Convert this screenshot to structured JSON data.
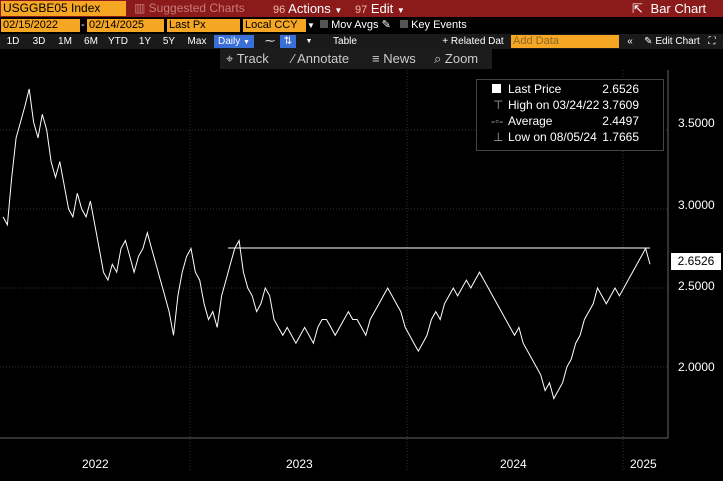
{
  "toolbar": {
    "ticker": "USGGBE05 Index",
    "suggested": "Suggested Charts",
    "actions_num": "96",
    "actions": "Actions",
    "edit_num": "97",
    "edit": "Edit",
    "bar_chart": "Bar Chart"
  },
  "controls": {
    "date_from": "02/15/2022",
    "date_to": "02/14/2025",
    "field": "Last Px",
    "currency": "Local CCY",
    "mov_avgs": "Mov Avgs",
    "key_events": "Key Events",
    "periods": [
      "1D",
      "3D",
      "1M",
      "6M",
      "YTD",
      "1Y",
      "5Y",
      "Max"
    ],
    "frequency": "Daily",
    "table": "Table",
    "related_data": "Related Dat",
    "add_data": "Add Data",
    "edit_chart": "Edit Chart"
  },
  "chart_tools": [
    "Track",
    "Annotate",
    "News",
    "Zoom"
  ],
  "legend": {
    "last_label": "Last Price",
    "last_value": "2.6526",
    "high_label": "High on 03/24/22",
    "high_value": "3.7609",
    "avg_label": "Average",
    "avg_value": "2.4497",
    "low_label": "Low on 08/05/24",
    "low_value": "1.7665"
  },
  "last_price_tag": "2.6526",
  "chart_data": {
    "type": "line",
    "x_labels": [
      "2022",
      "2023",
      "2024",
      "2025"
    ],
    "y_ticks": [
      "3.5000",
      "3.0000",
      "2.5000",
      "2.0000"
    ],
    "ylim": [
      1.55,
      3.88
    ],
    "series": [
      {
        "values": [
          2.95,
          2.9,
          3.2,
          3.45,
          3.55,
          3.65,
          3.76,
          3.55,
          3.45,
          3.6,
          3.5,
          3.3,
          3.2,
          3.3,
          3.15,
          3.0,
          2.95,
          3.1,
          3.0,
          2.95,
          3.05,
          2.9,
          2.75,
          2.6,
          2.55,
          2.65,
          2.6,
          2.75,
          2.8,
          2.7,
          2.6,
          2.7,
          2.75,
          2.85,
          2.75,
          2.65,
          2.55,
          2.45,
          2.35,
          2.2,
          2.45,
          2.6,
          2.7,
          2.75,
          2.6,
          2.55,
          2.4,
          2.3,
          2.35,
          2.25,
          2.45,
          2.55,
          2.65,
          2.75,
          2.8,
          2.6,
          2.5,
          2.45,
          2.35,
          2.4,
          2.5,
          2.45,
          2.3,
          2.25,
          2.2,
          2.25,
          2.2,
          2.15,
          2.2,
          2.25,
          2.2,
          2.15,
          2.25,
          2.3,
          2.3,
          2.25,
          2.2,
          2.25,
          2.3,
          2.35,
          2.3,
          2.3,
          2.25,
          2.2,
          2.3,
          2.35,
          2.4,
          2.45,
          2.5,
          2.45,
          2.4,
          2.35,
          2.25,
          2.2,
          2.15,
          2.1,
          2.15,
          2.2,
          2.3,
          2.35,
          2.3,
          2.4,
          2.45,
          2.5,
          2.45,
          2.5,
          2.55,
          2.5,
          2.55,
          2.6,
          2.55,
          2.5,
          2.45,
          2.4,
          2.35,
          2.3,
          2.25,
          2.2,
          2.25,
          2.15,
          2.1,
          2.05,
          2.0,
          1.95,
          1.85,
          1.9,
          1.8,
          1.85,
          1.9,
          2.0,
          2.05,
          2.15,
          2.2,
          2.3,
          2.35,
          2.4,
          2.5,
          2.45,
          2.4,
          2.45,
          2.5,
          2.45,
          2.5,
          2.55,
          2.6,
          2.65,
          2.7,
          2.75,
          2.65
        ]
      }
    ]
  }
}
